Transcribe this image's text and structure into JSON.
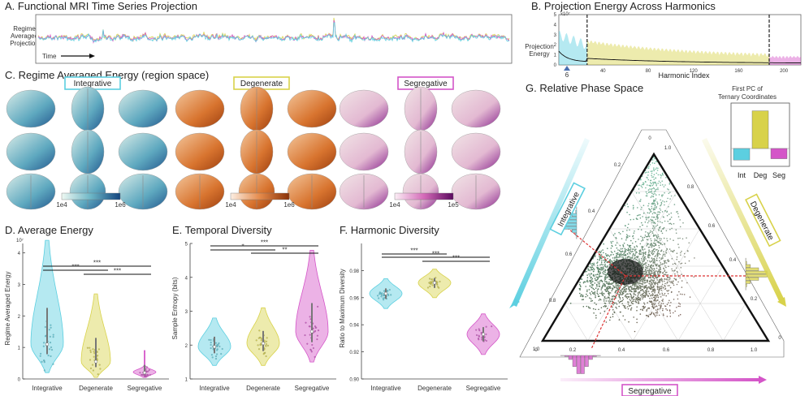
{
  "panels": {
    "a": {
      "title": "A. Functional MRI Time Series Projection",
      "ylabel_lines": [
        "Regime",
        "Averaged",
        "Projection"
      ],
      "time_label": "Time"
    },
    "b": {
      "title": "B. Projection Energy Across Harmonics",
      "ylabel_lines": [
        "Projection",
        "Energy"
      ],
      "y_exp": "x10⁷",
      "xlabel": "Harmonic Index",
      "marker": "6"
    },
    "c": {
      "title": "C. Regime Averaged Energy (region space)",
      "groups": [
        {
          "label": "Integrative",
          "color": "#5ccfe0",
          "cb_min": "1e4",
          "cb_max": "1e6"
        },
        {
          "label": "Degenerate",
          "color": "#d8d24a",
          "cb_min": "1e4",
          "cb_max": "1e6"
        },
        {
          "label": "Segregative",
          "color": "#d455c8",
          "cb_min": "1e4",
          "cb_max": "1e5"
        }
      ]
    },
    "d": {
      "title": "D. Average Energy",
      "ylabel": "Regime Averaged Energy",
      "y_exp": "10⁷"
    },
    "e": {
      "title": "E. Temporal Diversity",
      "ylabel": "Sample Entropy (bits)"
    },
    "f": {
      "title": "F. Harmonic Diversity",
      "ylabel": "Ratio to Maximum Diversity"
    },
    "g": {
      "title": "G. Relative Phase Space",
      "inset_title_lines": [
        "First PC of",
        "Ternary Coordinates"
      ],
      "axis_integrative": "Integrative",
      "axis_degenerate": "Degenerate",
      "axis_segregative": "Segregative"
    }
  },
  "categories": [
    "Integrative",
    "Degenerate",
    "Segregative"
  ],
  "stars": {
    "d": [
      {
        "pair": "Int-Seg",
        "label": "***"
      },
      {
        "pair": "Int-Deg",
        "label": "***"
      },
      {
        "pair": "Deg-Seg",
        "label": "***"
      }
    ],
    "e": [
      {
        "pair": "Int-Seg",
        "label": "***"
      },
      {
        "pair": "Int-Deg",
        "label": "*"
      },
      {
        "pair": "Deg-Seg",
        "label": "**"
      }
    ],
    "f": [
      {
        "pair": "Int-Seg",
        "label": "***"
      },
      {
        "pair": "Int-Deg",
        "label": "***"
      },
      {
        "pair": "Deg-Seg",
        "label": "***"
      }
    ]
  },
  "colors": {
    "integrative": "#5ccfe0",
    "degenerate": "#d8d24a",
    "segregative": "#d455c8"
  },
  "chart_data": [
    {
      "id": "b",
      "type": "area",
      "xlabel": "Harmonic Index",
      "ylabel": "Projection Energy",
      "x_ticks": [
        40,
        80,
        120,
        160,
        200
      ],
      "y_ticks": [
        0,
        1,
        2,
        3,
        4,
        5
      ],
      "xlim": [
        1,
        215
      ],
      "ylim": [
        0,
        5
      ],
      "dividers": [
        26,
        187
      ]
    },
    {
      "id": "d",
      "type": "violin",
      "categories": [
        "Integrative",
        "Degenerate",
        "Segregative"
      ],
      "medians": [
        1.1,
        0.55,
        0.2
      ],
      "ranges": [
        [
          0.2,
          4.4
        ],
        [
          0.05,
          2.7
        ],
        [
          0.05,
          0.9
        ]
      ],
      "ylim": [
        0,
        4.3
      ],
      "y_ticks": [
        0,
        1,
        2,
        3,
        4
      ]
    },
    {
      "id": "e",
      "type": "violin",
      "categories": [
        "Integrative",
        "Degenerate",
        "Segregative"
      ],
      "medians": [
        1.95,
        2.05,
        2.4
      ],
      "ranges": [
        [
          1.4,
          2.8
        ],
        [
          1.4,
          3.1
        ],
        [
          1.5,
          4.8
        ]
      ],
      "ylim": [
        1,
        5
      ],
      "y_ticks": [
        1,
        2,
        3,
        4,
        5
      ]
    },
    {
      "id": "f",
      "type": "violin",
      "categories": [
        "Integrative",
        "Degenerate",
        "Segregative"
      ],
      "medians": [
        0.963,
        0.971,
        0.933
      ],
      "ranges": [
        [
          0.952,
          0.974
        ],
        [
          0.96,
          0.981
        ],
        [
          0.918,
          0.948
        ]
      ],
      "ylim": [
        0.9,
        1.0
      ],
      "y_ticks": [
        0.9,
        0.92,
        0.94,
        0.96,
        0.98
      ]
    },
    {
      "id": "g_inset",
      "type": "bar",
      "categories": [
        "Int",
        "Deg",
        "Seg"
      ],
      "values": [
        -0.45,
        0.85,
        -0.4
      ]
    },
    {
      "id": "g",
      "type": "scatter",
      "ternary_ticks": [
        "0",
        "0.2",
        "0.4",
        "0.6",
        "0.8",
        "1.0"
      ]
    }
  ]
}
